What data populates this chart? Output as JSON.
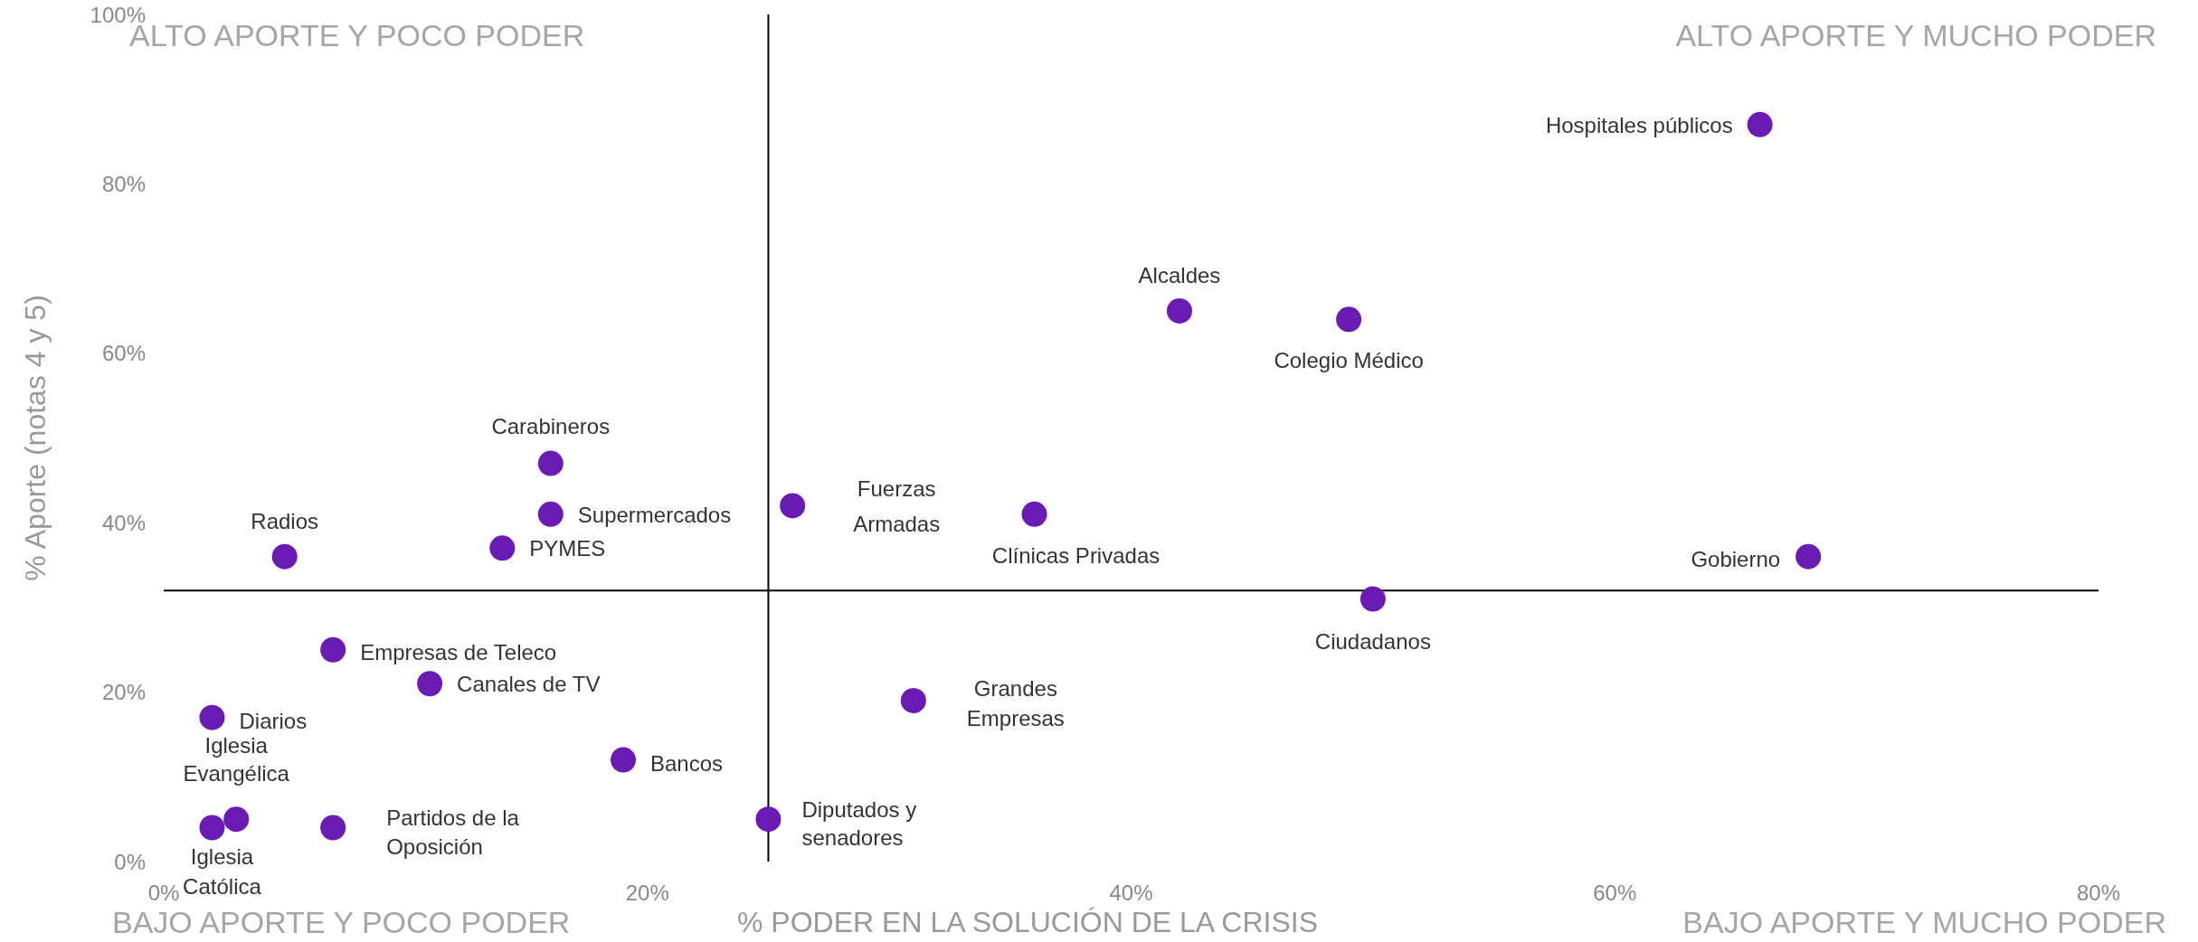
{
  "chart_data": {
    "type": "scatter",
    "xlabel": "% PODER EN LA SOLUCIÓN DE LA CRISIS",
    "ylabel": "% Aporte (notas 4 y 5)",
    "color": "#6a1bb3",
    "marker": "circle",
    "x": [
      66,
      42,
      49,
      16,
      16,
      14,
      5,
      26,
      36,
      68,
      50,
      7,
      11,
      2,
      31,
      19,
      25,
      3,
      2,
      7
    ],
    "values": [
      87,
      65,
      64,
      47,
      41,
      37,
      36,
      42,
      41,
      36,
      31,
      25,
      21,
      17,
      19,
      12,
      5,
      5,
      4,
      4
    ],
    "xlim": [
      0,
      80
    ],
    "ylim": [
      0,
      100
    ],
    "xticks": [
      {
        "value": 0,
        "label": "0%"
      },
      {
        "value": 20,
        "label": "20%"
      },
      {
        "value": 40,
        "label": "40%"
      },
      {
        "value": 60,
        "label": "60%"
      },
      {
        "value": 80,
        "label": "80%"
      }
    ],
    "yticks": [
      {
        "value": 0,
        "label": "0%"
      },
      {
        "value": 20,
        "label": "20%"
      },
      {
        "value": 40,
        "label": "40%"
      },
      {
        "value": 60,
        "label": "60%"
      },
      {
        "value": 80,
        "label": "80%"
      },
      {
        "value": 100,
        "label": "100%"
      }
    ],
    "ref_lines": [
      {
        "axis": "x",
        "value": 25,
        "color": "#000000"
      },
      {
        "axis": "y",
        "value": 32,
        "color": "#000000"
      }
    ],
    "annotations": [
      "ALTO APORTE Y POCO PODER",
      "ALTO APORTE Y MUCHO PODER",
      "BAJO APORTE Y POCO PODER",
      "BAJO APORTE Y MUCHO PODER",
      {
        "text": "Hospitales públicos",
        "x": 66,
        "y": 87
      },
      {
        "text": "Alcaldes",
        "x": 42,
        "y": 65
      },
      {
        "text": "Colegio Médico",
        "x": 49,
        "y": 64
      },
      {
        "text": "Carabineros",
        "x": 16,
        "y": 47
      },
      {
        "text": "Supermercados",
        "x": 16,
        "y": 41
      },
      {
        "text": "PYMES",
        "x": 14,
        "y": 37
      },
      {
        "text": "Radios",
        "x": 5,
        "y": 36
      },
      {
        "text": "Fuerzas Armadas",
        "x": 26,
        "y": 42
      },
      {
        "text": "Clínicas Privadas",
        "x": 36,
        "y": 41
      },
      {
        "text": "Gobierno",
        "x": 68,
        "y": 36
      },
      {
        "text": "Ciudadanos",
        "x": 50,
        "y": 31
      },
      {
        "text": "Empresas de Teleco",
        "x": 7,
        "y": 25
      },
      {
        "text": "Canales de TV",
        "x": 11,
        "y": 21
      },
      {
        "text": "Diarios",
        "x": 2,
        "y": 17
      },
      {
        "text": "Grandes Empresas",
        "x": 31,
        "y": 19
      },
      {
        "text": "Bancos",
        "x": 19,
        "y": 12
      },
      {
        "text": "Diputados y senadores",
        "x": 25,
        "y": 5
      },
      {
        "text": "Iglesia Evangélica",
        "x": 3,
        "y": 5
      },
      {
        "text": "Iglesia Católica",
        "x": 2,
        "y": 4
      },
      {
        "text": "Partidos de la Oposición",
        "x": 7,
        "y": 4
      }
    ]
  }
}
